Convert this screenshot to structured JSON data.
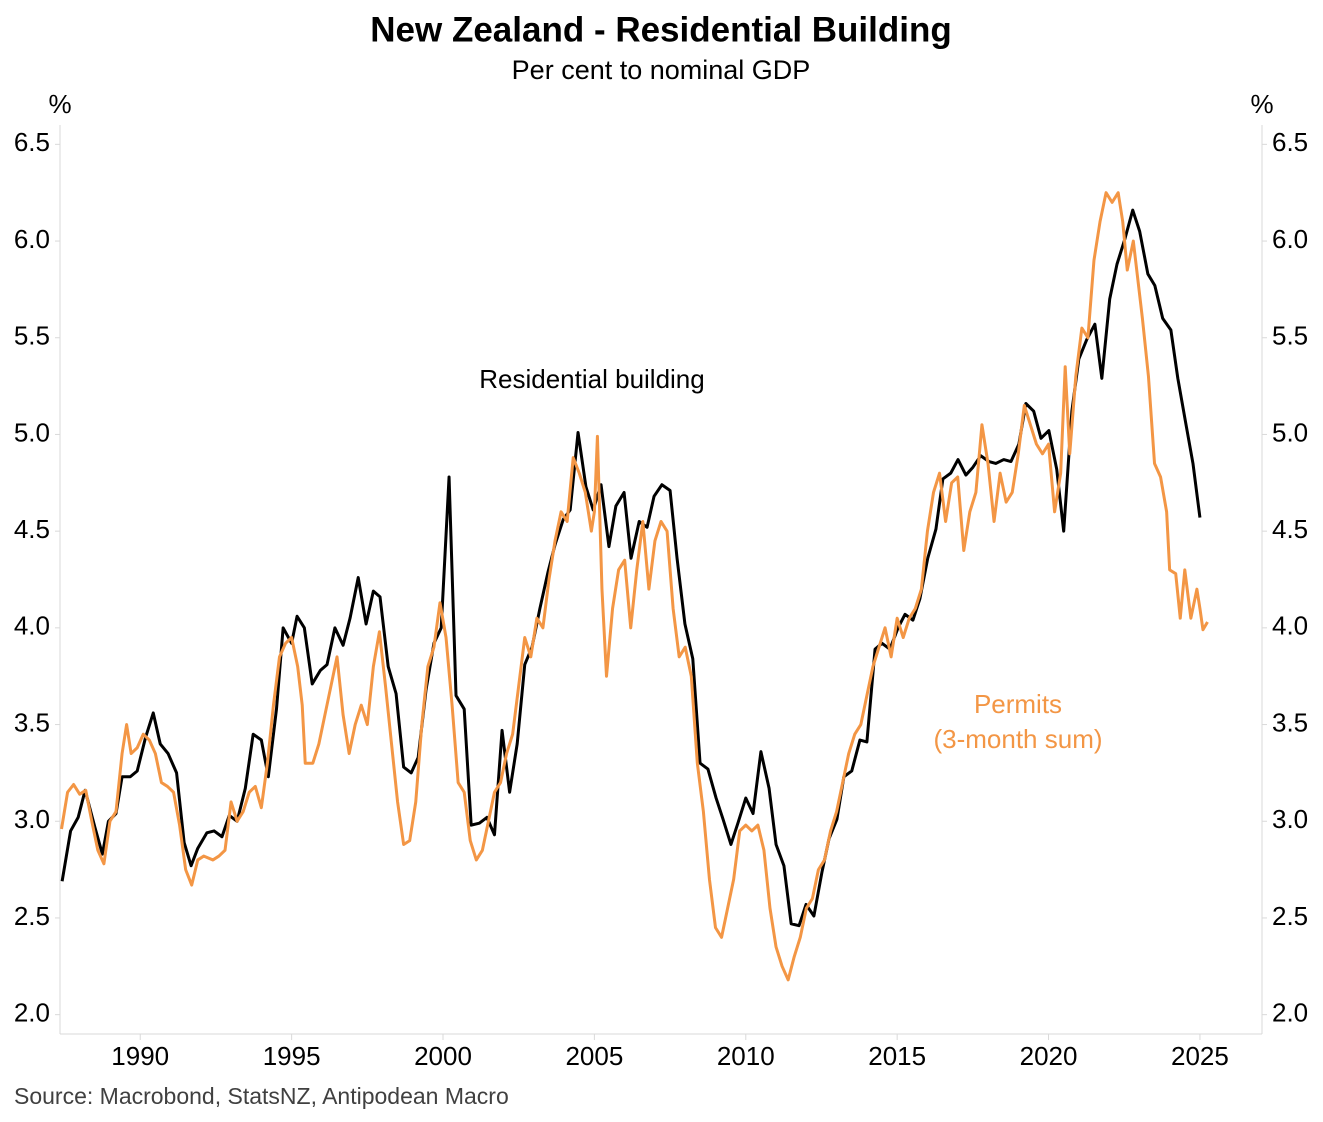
{
  "chart_data": {
    "type": "line",
    "title": "New Zealand - Residential Building",
    "subtitle": "Per cent to nominal GDP",
    "ylabel": "%",
    "y2label": "%",
    "source": "Source: Macrobond, StatsNZ, Antipodean Macro",
    "xlim": [
      1987.35,
      2027.05
    ],
    "xticks": [
      1990,
      1995,
      2000,
      2005,
      2010,
      2015,
      2020,
      2025
    ],
    "ylim": [
      1.9,
      6.6
    ],
    "yticks": [
      {
        "value": 2,
        "label": "2.0"
      },
      2.5,
      {
        "value": 3,
        "label": "3.0"
      },
      3.5,
      {
        "value": 4,
        "label": "4.0"
      },
      4.5,
      {
        "value": 5,
        "label": "5.0"
      },
      5.5,
      {
        "value": 6,
        "label": "6.0"
      },
      6.5
    ],
    "y2lim": [
      1.9,
      6.6
    ],
    "y2ticks": [
      {
        "value": 2,
        "label": "2.0"
      },
      2.5,
      {
        "value": 3,
        "label": "3.0"
      },
      3.5,
      {
        "value": 4,
        "label": "4.0"
      },
      4.5,
      {
        "value": 5,
        "label": "5.0"
      },
      5.5,
      {
        "value": 6,
        "label": "6.0"
      },
      6.5
    ],
    "grid": false,
    "series": [
      {
        "name": "Residential building",
        "color": "#000000",
        "x": [
          1987.42,
          1987.7,
          1987.95,
          1988.18,
          1988.5,
          1988.75,
          1988.95,
          1989.2,
          1989.4,
          1989.67,
          1989.9,
          1990.17,
          1990.43,
          1990.66,
          1990.92,
          1991.2,
          1991.45,
          1991.68,
          1991.9,
          1992.2,
          1992.44,
          1992.7,
          1992.94,
          1993.2,
          1993.47,
          1993.73,
          1994.0,
          1994.23,
          1994.5,
          1994.72,
          1995.0,
          1995.18,
          1995.42,
          1995.68,
          1995.95,
          1996.17,
          1996.43,
          1996.7,
          1996.93,
          1997.2,
          1997.46,
          1997.7,
          1997.92,
          1998.19,
          1998.45,
          1998.7,
          1998.95,
          1999.18,
          1999.44,
          1999.7,
          1999.94,
          2000.2,
          2000.43,
          2000.7,
          2000.93,
          2001.2,
          2001.45,
          2001.7,
          2001.95,
          2002.2,
          2002.45,
          2002.7,
          2002.94,
          2003.2,
          2003.47,
          2003.7,
          2003.97,
          2004.2,
          2004.46,
          2004.72,
          2004.96,
          2005.22,
          2005.48,
          2005.71,
          2005.98,
          2006.21,
          2006.48,
          2006.74,
          2006.97,
          2007.23,
          2007.5,
          2007.73,
          2007.99,
          2008.25,
          2008.49,
          2008.75,
          2009.02,
          2009.25,
          2009.51,
          2009.74,
          2010.0,
          2010.24,
          2010.5,
          2010.77,
          2011.0,
          2011.26,
          2011.5,
          2011.76,
          2011.99,
          2012.25,
          2012.52,
          2012.75,
          2013.01,
          2013.24,
          2013.5,
          2013.77,
          2014.0,
          2014.27,
          2014.5,
          2014.76,
          2015.03,
          2015.26,
          2015.52,
          2015.75,
          2016.01,
          2016.28,
          2016.51,
          2016.77,
          2017.01,
          2017.27,
          2017.5,
          2017.76,
          2018.03,
          2018.26,
          2018.52,
          2018.76,
          2019.02,
          2019.25,
          2019.51,
          2019.75,
          2020.01,
          2020.27,
          2020.5,
          2020.77,
          2021.0,
          2021.26,
          2021.53,
          2021.76,
          2022.02,
          2022.26,
          2022.52,
          2022.78,
          2023.01,
          2023.28,
          2023.51,
          2023.77,
          2024.04,
          2024.27,
          2024.53,
          2024.77,
          2025.0
        ],
        "values": [
          2.69,
          2.95,
          3.02,
          3.16,
          2.97,
          2.83,
          3.0,
          3.04,
          3.23,
          3.23,
          3.26,
          3.43,
          3.56,
          3.4,
          3.35,
          3.25,
          2.89,
          2.77,
          2.86,
          2.94,
          2.95,
          2.92,
          3.03,
          3.0,
          3.17,
          3.45,
          3.42,
          3.23,
          3.58,
          4.0,
          3.92,
          4.06,
          4.0,
          3.71,
          3.78,
          3.81,
          4.0,
          3.91,
          4.05,
          4.26,
          4.02,
          4.19,
          4.16,
          3.8,
          3.66,
          3.28,
          3.25,
          3.33,
          3.68,
          3.92,
          4.0,
          4.78,
          3.65,
          3.58,
          2.98,
          2.99,
          3.02,
          2.93,
          3.47,
          3.15,
          3.4,
          3.81,
          3.9,
          4.1,
          4.29,
          4.43,
          4.56,
          4.61,
          5.01,
          4.73,
          4.61,
          4.74,
          4.42,
          4.63,
          4.7,
          4.36,
          4.55,
          4.52,
          4.68,
          4.74,
          4.71,
          4.36,
          4.02,
          3.84,
          3.3,
          3.27,
          3.12,
          3.01,
          2.88,
          2.99,
          3.12,
          3.04,
          3.36,
          3.17,
          2.88,
          2.77,
          2.47,
          2.46,
          2.57,
          2.51,
          2.74,
          2.91,
          3.01,
          3.23,
          3.26,
          3.42,
          3.41,
          3.89,
          3.92,
          3.89,
          4.0,
          4.07,
          4.04,
          4.15,
          4.36,
          4.51,
          4.77,
          4.8,
          4.87,
          4.79,
          4.83,
          4.89,
          4.86,
          4.85,
          4.87,
          4.86,
          4.95,
          5.16,
          5.12,
          4.98,
          5.02,
          4.82,
          4.5,
          5.12,
          5.39,
          5.49,
          5.57,
          5.29,
          5.7,
          5.88,
          6.01,
          6.16,
          6.05,
          5.83,
          5.77,
          5.6,
          5.54,
          5.29,
          5.06,
          4.85,
          4.57
        ]
      },
      {
        "name": "Permits",
        "subname": "(3-month sum)",
        "color": "#f39645",
        "x": [
          1987.4,
          1987.6,
          1987.8,
          1988.0,
          1988.2,
          1988.4,
          1988.6,
          1988.8,
          1989.0,
          1989.2,
          1989.4,
          1989.55,
          1989.7,
          1989.9,
          1990.1,
          1990.3,
          1990.5,
          1990.7,
          1990.9,
          1991.1,
          1991.3,
          1991.5,
          1991.7,
          1991.9,
          1992.1,
          1992.4,
          1992.6,
          1992.8,
          1993.0,
          1993.2,
          1993.4,
          1993.6,
          1993.8,
          1994.0,
          1994.2,
          1994.4,
          1994.6,
          1994.8,
          1995.0,
          1995.2,
          1995.35,
          1995.45,
          1995.7,
          1995.9,
          1996.1,
          1996.3,
          1996.5,
          1996.7,
          1996.9,
          1997.1,
          1997.3,
          1997.5,
          1997.7,
          1997.9,
          1998.1,
          1998.3,
          1998.5,
          1998.7,
          1998.9,
          1999.1,
          1999.3,
          1999.5,
          1999.7,
          1999.9,
          2000.1,
          2000.3,
          2000.5,
          2000.7,
          2000.9,
          2001.1,
          2001.3,
          2001.5,
          2001.7,
          2001.9,
          2002.1,
          2002.3,
          2002.5,
          2002.7,
          2002.9,
          2003.1,
          2003.3,
          2003.5,
          2003.7,
          2003.9,
          2004.1,
          2004.3,
          2004.5,
          2004.7,
          2004.9,
          2005.0,
          2005.1,
          2005.25,
          2005.4,
          2005.6,
          2005.8,
          2006.0,
          2006.2,
          2006.4,
          2006.6,
          2006.8,
          2007.0,
          2007.2,
          2007.4,
          2007.6,
          2007.8,
          2008.0,
          2008.2,
          2008.4,
          2008.6,
          2008.8,
          2009.0,
          2009.2,
          2009.4,
          2009.6,
          2009.8,
          2010.0,
          2010.2,
          2010.4,
          2010.6,
          2010.8,
          2011.0,
          2011.2,
          2011.4,
          2011.6,
          2011.8,
          2012.0,
          2012.2,
          2012.4,
          2012.6,
          2012.8,
          2013.0,
          2013.2,
          2013.4,
          2013.6,
          2013.8,
          2014.0,
          2014.2,
          2014.4,
          2014.6,
          2014.8,
          2015.0,
          2015.2,
          2015.4,
          2015.6,
          2015.8,
          2016.0,
          2016.2,
          2016.4,
          2016.6,
          2016.8,
          2017.0,
          2017.2,
          2017.4,
          2017.6,
          2017.8,
          2018.0,
          2018.2,
          2018.4,
          2018.6,
          2018.8,
          2019.0,
          2019.2,
          2019.4,
          2019.6,
          2019.8,
          2020.0,
          2020.2,
          2020.4,
          2020.55,
          2020.7,
          2020.9,
          2021.1,
          2021.3,
          2021.5,
          2021.7,
          2021.9,
          2022.1,
          2022.3,
          2022.45,
          2022.6,
          2022.8,
          2022.95,
          2023.1,
          2023.3,
          2023.5,
          2023.7,
          2023.9,
          2024.0,
          2024.2,
          2024.35,
          2024.5,
          2024.7,
          2024.9,
          2025.0,
          2025.1,
          2025.25
        ],
        "values": [
          2.96,
          3.15,
          3.19,
          3.14,
          3.16,
          3.0,
          2.85,
          2.78,
          3.0,
          3.05,
          3.35,
          3.5,
          3.35,
          3.38,
          3.45,
          3.42,
          3.35,
          3.2,
          3.18,
          3.15,
          2.98,
          2.75,
          2.67,
          2.8,
          2.82,
          2.8,
          2.82,
          2.85,
          3.1,
          3.0,
          3.05,
          3.15,
          3.18,
          3.07,
          3.3,
          3.6,
          3.85,
          3.92,
          3.95,
          3.8,
          3.6,
          3.3,
          3.3,
          3.4,
          3.55,
          3.7,
          3.85,
          3.55,
          3.35,
          3.5,
          3.6,
          3.5,
          3.8,
          3.98,
          3.7,
          3.4,
          3.1,
          2.88,
          2.9,
          3.1,
          3.5,
          3.8,
          3.9,
          4.13,
          3.95,
          3.6,
          3.2,
          3.15,
          2.9,
          2.8,
          2.85,
          3.0,
          3.15,
          3.2,
          3.35,
          3.45,
          3.7,
          3.95,
          3.85,
          4.05,
          4.0,
          4.25,
          4.45,
          4.6,
          4.55,
          4.88,
          4.8,
          4.7,
          4.5,
          4.6,
          4.99,
          4.2,
          3.75,
          4.1,
          4.3,
          4.35,
          4.0,
          4.3,
          4.55,
          4.2,
          4.45,
          4.55,
          4.5,
          4.1,
          3.85,
          3.9,
          3.75,
          3.3,
          3.05,
          2.7,
          2.45,
          2.4,
          2.55,
          2.7,
          2.95,
          2.98,
          2.95,
          2.98,
          2.85,
          2.55,
          2.35,
          2.25,
          2.18,
          2.3,
          2.4,
          2.55,
          2.6,
          2.75,
          2.8,
          2.95,
          3.05,
          3.2,
          3.35,
          3.45,
          3.5,
          3.65,
          3.8,
          3.9,
          4.0,
          3.85,
          4.05,
          3.95,
          4.05,
          4.1,
          4.2,
          4.5,
          4.7,
          4.8,
          4.55,
          4.75,
          4.78,
          4.4,
          4.6,
          4.7,
          5.05,
          4.85,
          4.55,
          4.8,
          4.65,
          4.7,
          4.9,
          5.15,
          5.05,
          4.95,
          4.9,
          4.95,
          4.6,
          4.8,
          5.35,
          4.9,
          5.3,
          5.55,
          5.5,
          5.9,
          6.1,
          6.25,
          6.2,
          6.25,
          6.1,
          5.85,
          6.0,
          5.8,
          5.6,
          5.3,
          4.85,
          4.78,
          4.6,
          4.3,
          4.28,
          4.05,
          4.3,
          4.05,
          4.2,
          4.1,
          3.99,
          4.03
        ]
      }
    ]
  }
}
